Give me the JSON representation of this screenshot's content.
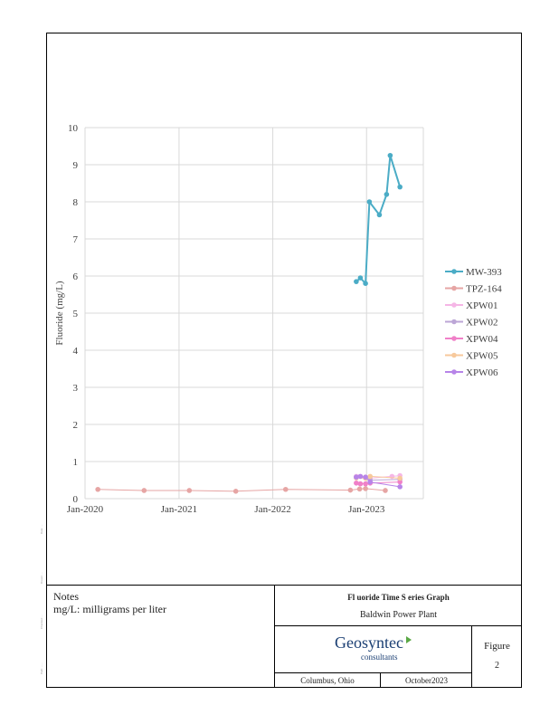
{
  "chart_data": {
    "type": "line",
    "title": "",
    "xlabel": "",
    "ylabel": "Fluoride (mg/L)",
    "x_ticks": [
      "Jan-2020",
      "Jan-2021",
      "Jan-2022",
      "Jan-2023"
    ],
    "xlim": [
      "2020-01-01",
      "2023-08-10"
    ],
    "y_ticks": [
      0,
      1,
      2,
      3,
      4,
      5,
      6,
      7,
      8,
      9,
      10
    ],
    "ylim": [
      0,
      10
    ],
    "grid": true,
    "legend_position": "right",
    "series": [
      {
        "name": "MW-393",
        "color": "#4bacc6",
        "width": 2,
        "points": [
          [
            "2022-11-22",
            5.85
          ],
          [
            "2022-12-08",
            5.95
          ],
          [
            "2022-12-28",
            5.8
          ],
          [
            "2023-01-12",
            8.0
          ],
          [
            "2023-02-20",
            7.65
          ],
          [
            "2023-03-20",
            8.2
          ],
          [
            "2023-04-03",
            9.25
          ],
          [
            "2023-05-11",
            8.4
          ]
        ]
      },
      {
        "name": "TPZ-164",
        "color": "#e6a5a4",
        "width": 1,
        "points": [
          [
            "2020-02-20",
            0.25
          ],
          [
            "2020-08-18",
            0.22
          ],
          [
            "2021-02-10",
            0.22
          ],
          [
            "2021-08-10",
            0.2
          ],
          [
            "2022-02-20",
            0.25
          ],
          [
            "2022-10-30",
            0.23
          ],
          [
            "2022-12-05",
            0.26
          ],
          [
            "2022-12-28",
            0.27
          ],
          [
            "2023-03-15",
            0.22
          ]
        ]
      },
      {
        "name": "XPW01",
        "color": "#f5b6e6",
        "width": 1,
        "points": [
          [
            "2022-11-22",
            0.6
          ],
          [
            "2022-12-28",
            0.58
          ],
          [
            "2023-01-15",
            0.55
          ],
          [
            "2023-04-10",
            0.6
          ],
          [
            "2023-05-11",
            0.62
          ]
        ]
      },
      {
        "name": "XPW02",
        "color": "#bca6d6",
        "width": 1,
        "points": [
          [
            "2022-11-22",
            0.58
          ],
          [
            "2022-12-28",
            0.56
          ],
          [
            "2023-01-15",
            0.5
          ],
          [
            "2023-05-11",
            0.52
          ]
        ]
      },
      {
        "name": "XPW04",
        "color": "#f080c8",
        "width": 1,
        "points": [
          [
            "2022-11-22",
            0.42
          ],
          [
            "2022-12-08",
            0.4
          ],
          [
            "2022-12-28",
            0.4
          ],
          [
            "2023-01-15",
            0.42
          ],
          [
            "2023-05-11",
            0.45
          ]
        ]
      },
      {
        "name": "XPW05",
        "color": "#f7c99c",
        "width": 1,
        "points": [
          [
            "2022-11-22",
            0.56
          ],
          [
            "2022-12-28",
            0.55
          ],
          [
            "2023-01-15",
            0.6
          ],
          [
            "2023-05-11",
            0.55
          ]
        ]
      },
      {
        "name": "XPW06",
        "color": "#b784e8",
        "width": 1,
        "points": [
          [
            "2022-11-22",
            0.58
          ],
          [
            "2022-12-08",
            0.6
          ],
          [
            "2022-12-28",
            0.58
          ],
          [
            "2023-01-15",
            0.45
          ],
          [
            "2023-05-11",
            0.32
          ]
        ]
      }
    ]
  },
  "notes": {
    "title": "Notes",
    "line1": "mg/L: milligrams per liter"
  },
  "title_block": {
    "graph_title": "Fl uoride      Time    S eries Graph",
    "plant": "Baldwin Power Plant",
    "logo_main": "Geosyntec",
    "logo_sub": "consultants",
    "figure_label": "Figure",
    "figure_number": "2",
    "location": "Columbus, Ohio",
    "date": "October2023"
  },
  "colors": {
    "accent": "#4bacc6",
    "logo_blue": "#1b3f73",
    "logo_green": "#5aa845"
  }
}
